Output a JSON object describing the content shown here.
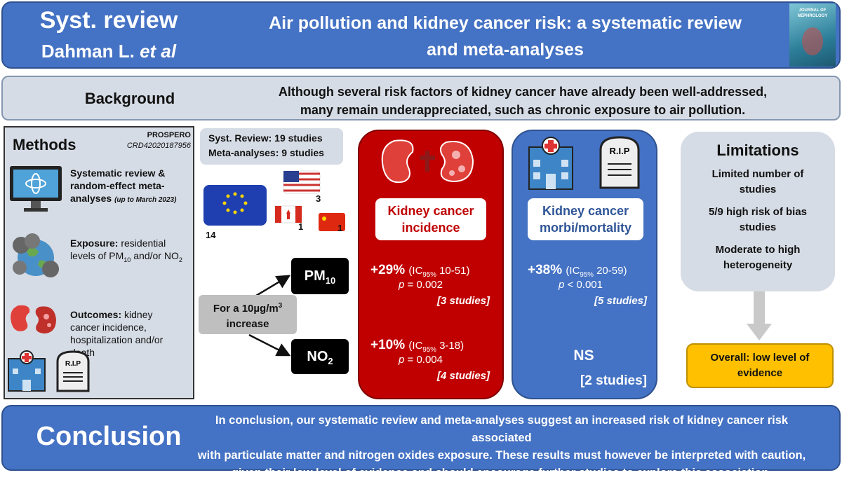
{
  "header": {
    "type_label": "Syst. review",
    "authors": "Dahman L.",
    "authors_etal": "et al",
    "title_lines": [
      "Air pollution and kidney cancer risk: a systematic review",
      "and meta-analyses"
    ],
    "journal_cover": "JOURNAL OF NEPHROLOGY"
  },
  "background": {
    "label": "Background",
    "lines": [
      "Although several risk factors of kidney cancer have already been well-addressed,",
      "many remain underappreciated, such as chronic exposure to air pollution."
    ]
  },
  "methods": {
    "title": "Methods",
    "registry": "PROSPERO",
    "registry_id": "CRD42020187956",
    "design": {
      "text": "Systematic review & random-effect meta-analyses",
      "note": "(up to March 2023)"
    },
    "exposure": {
      "label": "Exposure:",
      "text": "residential levels of PM",
      "sub1": "10",
      "text2": "and/or NO",
      "sub2": "2"
    },
    "outcomes": {
      "label": "Outcomes:",
      "text": "kidney cancer incidence, hospitalization and/or death"
    },
    "rip_label": "R.I.P"
  },
  "studies": {
    "review": "Syst. Review: 19 studies",
    "meta": "Meta-analyses: 9 studies",
    "countries": {
      "eu": 14,
      "us": 3,
      "ca": 1,
      "cn": 1
    }
  },
  "exposure_increase": {
    "text": "For a 10µg/m",
    "sup": "3",
    "text2": "increase"
  },
  "pollutants": {
    "pm": {
      "text": "PM",
      "sub": "10"
    },
    "no2": {
      "text": "NO",
      "sub": "2"
    }
  },
  "incidence": {
    "title": "Kidney cancer incidence",
    "pm": {
      "effect": "+29%",
      "ci_label": "(IC",
      "ci_sub": "95%",
      "ci": "10-51)",
      "p_label": "p",
      "p": "= 0.002",
      "studies": "[3 studies]"
    },
    "no2": {
      "effect": "+10%",
      "ci_label": "(IC",
      "ci_sub": "95%",
      "ci": "3-18)",
      "p_label": "p",
      "p": "= 0.004",
      "studies": "[4 studies]"
    }
  },
  "mortality": {
    "title": "Kidney cancer morbi/mortality",
    "rip_label": "R.I.P",
    "pm": {
      "effect": "+38%",
      "ci_label": "(IC",
      "ci_sub": "95%",
      "ci": "20-59)",
      "p_label": "p",
      "p": "< 0.001",
      "studies": "[5 studies]"
    },
    "no2": {
      "effect": "NS",
      "studies": "[2 studies]"
    }
  },
  "limitations": {
    "title": "Limitations",
    "items": [
      "Limited number of studies",
      "5/9 high risk of bias studies",
      "Moderate to high heterogeneity"
    ],
    "overall": "Overall: low level of evidence"
  },
  "conclusion": {
    "label": "Conclusion",
    "lines": [
      "In conclusion, our systematic review and meta-analyses suggest an increased risk of kidney cancer risk associated",
      "with particulate matter and nitrogen oxides exposure. These results must however be interpreted with caution,",
      "given their low level of evidence and should encourage further studies to explore this association."
    ]
  }
}
